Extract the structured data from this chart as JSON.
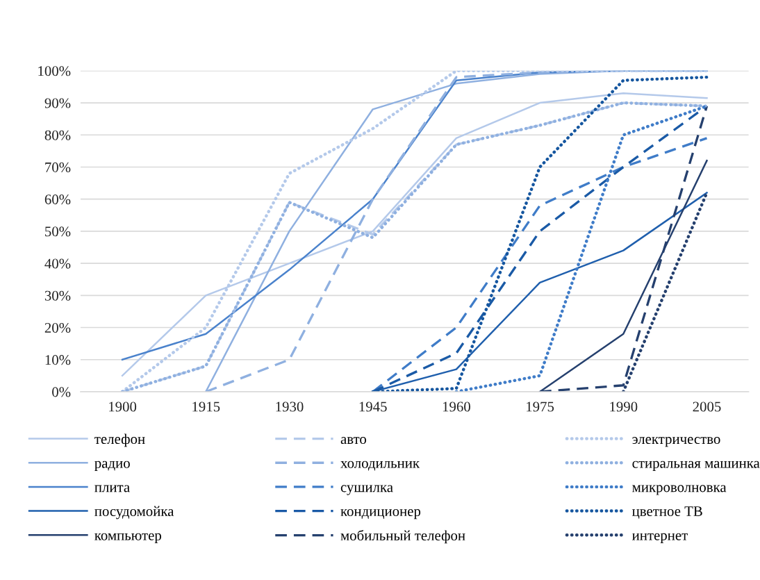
{
  "chart_data": {
    "type": "line",
    "categories": [
      "1900",
      "1915",
      "1930",
      "1945",
      "1960",
      "1975",
      "1990",
      "2005"
    ],
    "ylim": [
      0,
      100
    ],
    "yticks": [
      {
        "value": 0,
        "label": "0%"
      },
      {
        "value": 10,
        "label": "10%"
      },
      {
        "value": 20,
        "label": "20%"
      },
      {
        "value": 30,
        "label": "30%"
      },
      {
        "value": 40,
        "label": "40%"
      },
      {
        "value": 50,
        "label": "50%"
      },
      {
        "value": 60,
        "label": "60%"
      },
      {
        "value": 70,
        "label": "70%"
      },
      {
        "value": 80,
        "label": "80%"
      },
      {
        "value": 90,
        "label": "90%"
      },
      {
        "value": 100,
        "label": "100%"
      }
    ],
    "grid": "y",
    "legend": "bottom",
    "marker": "none",
    "series": [
      {
        "name": "телефон",
        "color": "#b4c9ea",
        "line_style": "solid",
        "values": [
          5,
          30,
          40,
          50,
          79,
          90,
          93,
          91.5
        ]
      },
      {
        "name": "радио",
        "color": "#8fb0e0",
        "line_style": "solid",
        "values": [
          null,
          0,
          50,
          88,
          96,
          99,
          100,
          100
        ]
      },
      {
        "name": "плита",
        "color": "#4a82cc",
        "line_style": "solid",
        "values": [
          10,
          18,
          38,
          60,
          97,
          99.5,
          100,
          100
        ]
      },
      {
        "name": "посудомойка",
        "color": "#1f5fad",
        "line_style": "solid",
        "values": [
          null,
          null,
          null,
          0,
          7,
          34,
          44,
          62
        ]
      },
      {
        "name": "компьютер",
        "color": "#25406e",
        "line_style": "solid",
        "values": [
          null,
          null,
          null,
          null,
          null,
          0,
          18,
          72
        ]
      },
      {
        "name": "авто",
        "color": "#b4c9ea",
        "line_style": "dashed",
        "values": [
          0,
          8,
          59,
          49,
          77,
          83,
          90,
          89
        ]
      },
      {
        "name": "холодильник",
        "color": "#8fb0e0",
        "line_style": "dashed",
        "values": [
          null,
          0,
          10,
          60,
          98,
          99.5,
          100,
          100
        ]
      },
      {
        "name": "сушилка",
        "color": "#3f7cc8",
        "line_style": "dashed",
        "values": [
          null,
          null,
          null,
          0,
          20,
          58,
          70,
          79
        ]
      },
      {
        "name": "кондиционер",
        "color": "#1a5aa6",
        "line_style": "dashed",
        "values": [
          null,
          null,
          null,
          0,
          12,
          50,
          70,
          89
        ]
      },
      {
        "name": "мобильный телефон",
        "color": "#25406e",
        "line_style": "dashed",
        "values": [
          null,
          null,
          null,
          null,
          null,
          0,
          2,
          89
        ]
      },
      {
        "name": "электричество",
        "color": "#b4c9ea",
        "line_style": "dotted",
        "values": [
          0,
          20,
          68,
          82,
          100,
          100,
          100,
          100
        ]
      },
      {
        "name": "стиральная машинка",
        "color": "#8fb0e0",
        "line_style": "dotted",
        "values": [
          0,
          8,
          59,
          48,
          77,
          83,
          90,
          89
        ]
      },
      {
        "name": "микроволновка",
        "color": "#3f7cc8",
        "line_style": "dotted",
        "values": [
          null,
          null,
          null,
          null,
          0,
          5,
          80,
          89
        ]
      },
      {
        "name": "цветное ТВ",
        "color": "#15569f",
        "line_style": "dotted",
        "values": [
          null,
          null,
          null,
          0,
          1,
          70,
          97,
          98
        ]
      },
      {
        "name": "интернет",
        "color": "#25406e",
        "line_style": "dotted",
        "values": [
          null,
          null,
          null,
          null,
          null,
          null,
          0,
          62
        ]
      }
    ]
  }
}
